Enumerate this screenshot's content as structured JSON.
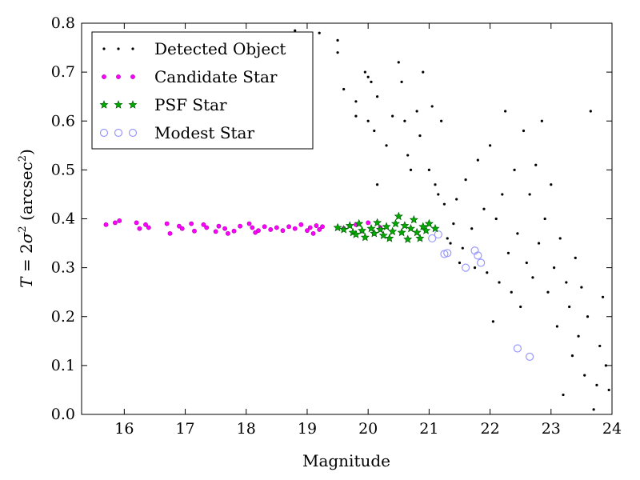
{
  "chart_data": {
    "type": "scatter",
    "xlabel": "Magnitude",
    "ylabel_parts": [
      "T",
      " = 2",
      "σ",
      "2",
      " (arcsec",
      "2",
      ")"
    ],
    "xlim": [
      15.3,
      24.0
    ],
    "ylim": [
      0.0,
      0.8
    ],
    "xticks": [
      "16",
      "17",
      "18",
      "19",
      "20",
      "21",
      "22",
      "23",
      "24"
    ],
    "yticks": [
      "0.0",
      "0.1",
      "0.2",
      "0.3",
      "0.4",
      "0.5",
      "0.6",
      "0.7",
      "0.8"
    ],
    "grid": false,
    "legend_position": "top-left",
    "series": [
      {
        "name": "Detected Object",
        "marker": "dot",
        "color": "#000000",
        "points": [
          [
            18.8,
            0.785
          ],
          [
            19.2,
            0.78
          ],
          [
            19.5,
            0.765
          ],
          [
            19.5,
            0.74
          ],
          [
            19.6,
            0.665
          ],
          [
            19.8,
            0.64
          ],
          [
            19.8,
            0.61
          ],
          [
            19.95,
            0.7
          ],
          [
            20.0,
            0.69
          ],
          [
            20.05,
            0.68
          ],
          [
            20.0,
            0.6
          ],
          [
            20.1,
            0.58
          ],
          [
            20.15,
            0.65
          ],
          [
            20.15,
            0.47
          ],
          [
            20.3,
            0.55
          ],
          [
            20.4,
            0.61
          ],
          [
            20.5,
            0.72
          ],
          [
            20.55,
            0.68
          ],
          [
            20.6,
            0.6
          ],
          [
            20.65,
            0.53
          ],
          [
            20.7,
            0.5
          ],
          [
            20.8,
            0.62
          ],
          [
            20.85,
            0.57
          ],
          [
            20.9,
            0.7
          ],
          [
            21.0,
            0.5
          ],
          [
            21.05,
            0.63
          ],
          [
            21.1,
            0.47
          ],
          [
            21.15,
            0.45
          ],
          [
            21.2,
            0.6
          ],
          [
            21.25,
            0.43
          ],
          [
            21.3,
            0.36
          ],
          [
            21.35,
            0.35
          ],
          [
            21.4,
            0.39
          ],
          [
            21.45,
            0.44
          ],
          [
            21.5,
            0.31
          ],
          [
            21.55,
            0.34
          ],
          [
            21.6,
            0.48
          ],
          [
            21.7,
            0.38
          ],
          [
            21.75,
            0.3
          ],
          [
            21.8,
            0.52
          ],
          [
            21.9,
            0.42
          ],
          [
            21.95,
            0.29
          ],
          [
            22.0,
            0.55
          ],
          [
            22.05,
            0.19
          ],
          [
            22.1,
            0.4
          ],
          [
            22.15,
            0.27
          ],
          [
            22.2,
            0.45
          ],
          [
            22.25,
            0.62
          ],
          [
            22.3,
            0.33
          ],
          [
            22.35,
            0.25
          ],
          [
            22.4,
            0.5
          ],
          [
            22.45,
            0.37
          ],
          [
            22.5,
            0.22
          ],
          [
            22.55,
            0.58
          ],
          [
            22.6,
            0.31
          ],
          [
            22.65,
            0.45
          ],
          [
            22.7,
            0.28
          ],
          [
            22.75,
            0.51
          ],
          [
            22.8,
            0.35
          ],
          [
            22.85,
            0.6
          ],
          [
            22.9,
            0.4
          ],
          [
            22.95,
            0.25
          ],
          [
            23.0,
            0.47
          ],
          [
            23.05,
            0.3
          ],
          [
            23.1,
            0.18
          ],
          [
            23.15,
            0.36
          ],
          [
            23.2,
            0.04
          ],
          [
            23.25,
            0.27
          ],
          [
            23.3,
            0.22
          ],
          [
            23.35,
            0.12
          ],
          [
            23.4,
            0.32
          ],
          [
            23.45,
            0.16
          ],
          [
            23.5,
            0.26
          ],
          [
            23.55,
            0.08
          ],
          [
            23.6,
            0.2
          ],
          [
            23.65,
            0.62
          ],
          [
            23.7,
            0.01
          ],
          [
            23.75,
            0.06
          ],
          [
            23.8,
            0.14
          ],
          [
            23.85,
            0.24
          ],
          [
            23.9,
            0.1
          ],
          [
            23.95,
            0.05
          ]
        ]
      },
      {
        "name": "Candidate Star",
        "marker": "circle",
        "color": "#ff00ff",
        "points": [
          [
            15.7,
            0.388
          ],
          [
            15.85,
            0.392
          ],
          [
            15.92,
            0.396
          ],
          [
            16.2,
            0.392
          ],
          [
            16.25,
            0.38
          ],
          [
            16.35,
            0.388
          ],
          [
            16.4,
            0.382
          ],
          [
            16.7,
            0.39
          ],
          [
            16.75,
            0.37
          ],
          [
            16.9,
            0.385
          ],
          [
            16.95,
            0.38
          ],
          [
            17.1,
            0.39
          ],
          [
            17.15,
            0.375
          ],
          [
            17.3,
            0.388
          ],
          [
            17.35,
            0.382
          ],
          [
            17.5,
            0.374
          ],
          [
            17.55,
            0.385
          ],
          [
            17.65,
            0.38
          ],
          [
            17.7,
            0.37
          ],
          [
            17.8,
            0.375
          ],
          [
            17.9,
            0.385
          ],
          [
            18.05,
            0.39
          ],
          [
            18.1,
            0.382
          ],
          [
            18.15,
            0.372
          ],
          [
            18.2,
            0.376
          ],
          [
            18.3,
            0.384
          ],
          [
            18.4,
            0.378
          ],
          [
            18.5,
            0.382
          ],
          [
            18.6,
            0.376
          ],
          [
            18.7,
            0.384
          ],
          [
            18.8,
            0.38
          ],
          [
            18.9,
            0.388
          ],
          [
            19.0,
            0.376
          ],
          [
            19.05,
            0.382
          ],
          [
            19.1,
            0.37
          ],
          [
            19.15,
            0.386
          ],
          [
            19.2,
            0.378
          ],
          [
            19.25,
            0.384
          ],
          [
            19.6,
            0.38
          ],
          [
            19.8,
            0.388
          ],
          [
            19.9,
            0.375
          ],
          [
            20.0,
            0.392
          ],
          [
            20.1,
            0.37
          ],
          [
            20.2,
            0.382
          ],
          [
            20.35,
            0.376
          ],
          [
            20.5,
            0.37
          ],
          [
            20.6,
            0.364
          ]
        ]
      },
      {
        "name": "PSF Star",
        "marker": "star",
        "color": "#00aa00",
        "points": [
          [
            19.5,
            0.382
          ],
          [
            19.6,
            0.378
          ],
          [
            19.7,
            0.386
          ],
          [
            19.75,
            0.372
          ],
          [
            19.8,
            0.368
          ],
          [
            19.85,
            0.39
          ],
          [
            19.9,
            0.376
          ],
          [
            19.95,
            0.362
          ],
          [
            20.05,
            0.38
          ],
          [
            20.1,
            0.37
          ],
          [
            20.15,
            0.392
          ],
          [
            20.2,
            0.378
          ],
          [
            20.25,
            0.366
          ],
          [
            20.3,
            0.384
          ],
          [
            20.35,
            0.36
          ],
          [
            20.4,
            0.374
          ],
          [
            20.45,
            0.39
          ],
          [
            20.5,
            0.405
          ],
          [
            20.55,
            0.372
          ],
          [
            20.6,
            0.386
          ],
          [
            20.65,
            0.358
          ],
          [
            20.7,
            0.38
          ],
          [
            20.75,
            0.398
          ],
          [
            20.8,
            0.372
          ],
          [
            20.85,
            0.36
          ],
          [
            20.9,
            0.384
          ],
          [
            20.95,
            0.376
          ],
          [
            21.0,
            0.39
          ],
          [
            21.1,
            0.38
          ]
        ]
      },
      {
        "name": "Modest Star",
        "marker": "open-circle",
        "color": "#9999ff",
        "points": [
          [
            21.05,
            0.36
          ],
          [
            21.15,
            0.368
          ],
          [
            21.25,
            0.328
          ],
          [
            21.3,
            0.33
          ],
          [
            21.6,
            0.3
          ],
          [
            21.75,
            0.335
          ],
          [
            21.8,
            0.325
          ],
          [
            21.85,
            0.31
          ],
          [
            22.45,
            0.135
          ],
          [
            22.65,
            0.118
          ]
        ]
      }
    ]
  }
}
